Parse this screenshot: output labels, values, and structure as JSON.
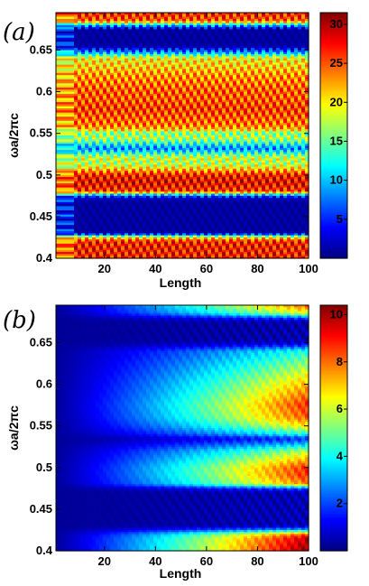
{
  "chart_data": [
    {
      "type": "heatmap",
      "panel_label": "(a)",
      "xlabel": "Length",
      "ylabel": "ωa/2πc",
      "xlim": [
        1,
        100
      ],
      "ylim": [
        0.4,
        0.695
      ],
      "x_ticks": [
        20,
        40,
        60,
        80,
        100
      ],
      "y_ticks": [
        0.4,
        0.45,
        0.5,
        0.55,
        0.6,
        0.65
      ],
      "x_tick_labels": [
        "20",
        "40",
        "60",
        "80",
        "100"
      ],
      "y_tick_labels": [
        "0.4",
        "0.45",
        "0.5",
        "0.55",
        "0.6",
        "0.65"
      ],
      "colorbar": {
        "min": 0,
        "max": 31.5,
        "ticks": [
          5,
          10,
          15,
          20,
          25,
          30
        ],
        "tick_labels": [
          "5",
          "10",
          "15",
          "20",
          "25",
          "30"
        ]
      },
      "colormap": "jet",
      "oscillation_along_length": "strong",
      "frequency_profile": [
        [
          0.4,
          27
        ],
        [
          0.415,
          27
        ],
        [
          0.42,
          27
        ],
        [
          0.425,
          20
        ],
        [
          0.43,
          1
        ],
        [
          0.47,
          1
        ],
        [
          0.475,
          6
        ],
        [
          0.48,
          26
        ],
        [
          0.49,
          28
        ],
        [
          0.5,
          27
        ],
        [
          0.505,
          23
        ],
        [
          0.51,
          19
        ],
        [
          0.515,
          17
        ],
        [
          0.52,
          19
        ],
        [
          0.525,
          14
        ],
        [
          0.532,
          8
        ],
        [
          0.538,
          13
        ],
        [
          0.545,
          18
        ],
        [
          0.55,
          15
        ],
        [
          0.555,
          22
        ],
        [
          0.56,
          24
        ],
        [
          0.57,
          25
        ],
        [
          0.58,
          26
        ],
        [
          0.59,
          25
        ],
        [
          0.6,
          25
        ],
        [
          0.61,
          24
        ],
        [
          0.62,
          23
        ],
        [
          0.63,
          21
        ],
        [
          0.64,
          20
        ],
        [
          0.645,
          12
        ],
        [
          0.65,
          5
        ],
        [
          0.655,
          1
        ],
        [
          0.675,
          1
        ],
        [
          0.68,
          10
        ],
        [
          0.685,
          25
        ],
        [
          0.695,
          27
        ]
      ]
    },
    {
      "type": "heatmap",
      "panel_label": "(b)",
      "xlabel": "Length",
      "ylabel": "ωa/2πc",
      "xlim": [
        1,
        100
      ],
      "ylim": [
        0.4,
        0.695
      ],
      "x_ticks": [
        20,
        40,
        60,
        80,
        100
      ],
      "y_ticks": [
        0.4,
        0.45,
        0.5,
        0.55,
        0.6,
        0.65
      ],
      "x_tick_labels": [
        "20",
        "40",
        "60",
        "80",
        "100"
      ],
      "y_tick_labels": [
        "0.4",
        "0.45",
        "0.5",
        "0.55",
        "0.6",
        "0.65"
      ],
      "colorbar": {
        "min": 0,
        "max": 10.4,
        "ticks": [
          2,
          4,
          6,
          8,
          10
        ],
        "tick_labels": [
          "2",
          "4",
          "6",
          "8",
          "10"
        ]
      },
      "colormap": "jet",
      "oscillation_along_length": "weak",
      "frequency_profile": [
        [
          0.4,
          10
        ],
        [
          0.415,
          9.5
        ],
        [
          0.42,
          8
        ],
        [
          0.425,
          3
        ],
        [
          0.43,
          0.3
        ],
        [
          0.47,
          0.3
        ],
        [
          0.475,
          2
        ],
        [
          0.48,
          7.5
        ],
        [
          0.49,
          8.5
        ],
        [
          0.5,
          8.5
        ],
        [
          0.51,
          7
        ],
        [
          0.52,
          5.5
        ],
        [
          0.53,
          2.5
        ],
        [
          0.535,
          1.5
        ],
        [
          0.54,
          4
        ],
        [
          0.55,
          6.5
        ],
        [
          0.56,
          8
        ],
        [
          0.575,
          8.5
        ],
        [
          0.6,
          7
        ],
        [
          0.62,
          5.5
        ],
        [
          0.64,
          4
        ],
        [
          0.645,
          2
        ],
        [
          0.65,
          0.5
        ],
        [
          0.655,
          0.2
        ],
        [
          0.675,
          0.2
        ],
        [
          0.68,
          2
        ],
        [
          0.685,
          6
        ],
        [
          0.695,
          8
        ]
      ]
    }
  ]
}
